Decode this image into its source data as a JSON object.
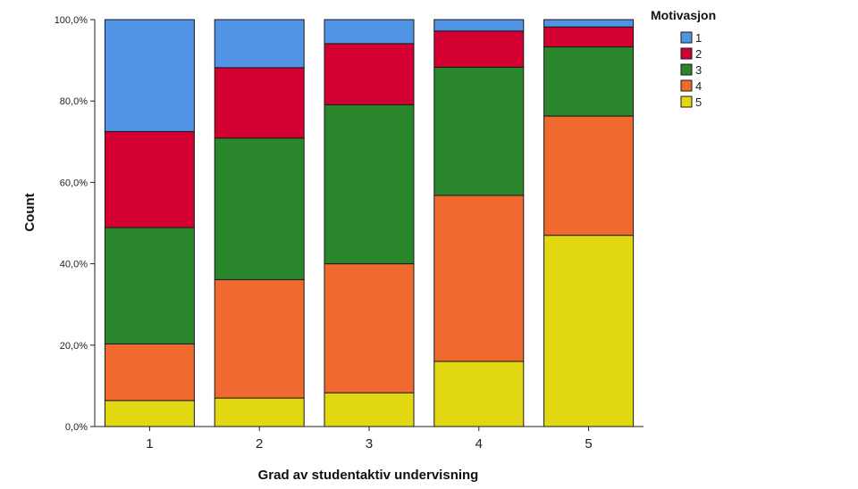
{
  "chart_data": {
    "type": "bar",
    "stacked": true,
    "percent": true,
    "xlabel": "Grad av studentaktiv undervisning",
    "ylabel": "Count",
    "categories": [
      "1",
      "2",
      "3",
      "4",
      "5"
    ],
    "ylim": [
      0,
      100
    ],
    "yticks": [
      0,
      20,
      40,
      60,
      80,
      100
    ],
    "ytick_labels": [
      "0,0%",
      "20,0%",
      "40,0%",
      "60,0%",
      "80,0%",
      "100,0%"
    ],
    "legend": {
      "title": "Motivasjon",
      "position": "top-right"
    },
    "series": [
      {
        "name": "5",
        "color": "#e2d812",
        "values": [
          6.4,
          7.0,
          8.3,
          16.0,
          47.0
        ]
      },
      {
        "name": "4",
        "color": "#f0692e",
        "values": [
          13.9,
          29.1,
          31.7,
          40.8,
          29.3
        ]
      },
      {
        "name": "3",
        "color": "#29862b",
        "values": [
          28.6,
          34.8,
          39.1,
          31.5,
          17.0
        ]
      },
      {
        "name": "2",
        "color": "#d30031",
        "values": [
          23.6,
          17.3,
          15.0,
          8.9,
          4.9
        ]
      },
      {
        "name": "1",
        "color": "#5193e5",
        "values": [
          27.5,
          11.8,
          5.9,
          2.8,
          1.8
        ]
      }
    ],
    "grid": false
  }
}
